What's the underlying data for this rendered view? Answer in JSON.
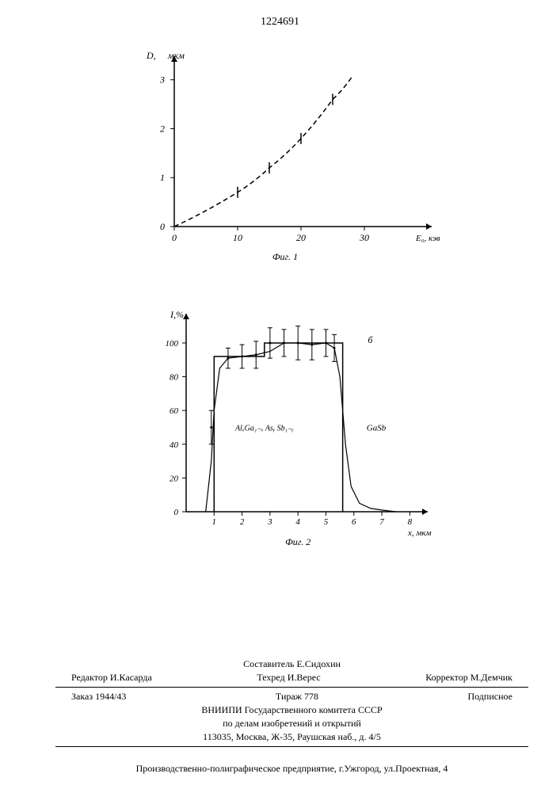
{
  "page_number": "1224691",
  "chart1": {
    "type": "line",
    "y_axis_label_left": "D,",
    "y_axis_label_right": "мкм",
    "x_axis_label": "E₀, кэв",
    "caption": "Фиг. 1",
    "x_ticks": [
      0,
      10,
      20,
      30
    ],
    "y_ticks": [
      0,
      1,
      2,
      3
    ],
    "xlim": [
      0,
      40
    ],
    "ylim": [
      0,
      3.4
    ],
    "line_color": "#000000",
    "line_dash": "6,4",
    "background": "#ffffff",
    "data_points": [
      {
        "x": 0,
        "y": 0
      },
      {
        "x": 10,
        "y": 0.7
      },
      {
        "x": 15,
        "y": 1.2
      },
      {
        "x": 20,
        "y": 1.8
      },
      {
        "x": 25,
        "y": 2.6
      },
      {
        "x": 28,
        "y": 3.05
      }
    ],
    "markers": [
      {
        "x": 10,
        "y": 0.7
      },
      {
        "x": 15,
        "y": 1.2
      },
      {
        "x": 20,
        "y": 1.8
      },
      {
        "x": 25,
        "y": 2.6
      }
    ]
  },
  "chart2": {
    "type": "line",
    "y_axis_label": "I,%",
    "x_axis_label": "x, мкм",
    "caption": "Фиг. 2",
    "region_label_left": "AlₓGa₁₋ₓ Asᵧ Sb₁₋ᵧ",
    "region_label_right": "GaSb",
    "curve_label": "б",
    "x_ticks": [
      1,
      2,
      3,
      4,
      5,
      6,
      7,
      8
    ],
    "y_ticks": [
      0,
      20,
      40,
      60,
      80,
      100
    ],
    "xlim": [
      0,
      8.5
    ],
    "ylim": [
      0,
      115
    ],
    "line_color": "#000000",
    "background": "#ffffff",
    "step_line": [
      {
        "x": 1,
        "y": 0
      },
      {
        "x": 1,
        "y": 92
      },
      {
        "x": 2.8,
        "y": 92
      },
      {
        "x": 2.8,
        "y": 100
      },
      {
        "x": 5.6,
        "y": 100
      },
      {
        "x": 5.6,
        "y": 0
      }
    ],
    "smooth_curve": [
      {
        "x": 0.7,
        "y": 0
      },
      {
        "x": 0.9,
        "y": 30
      },
      {
        "x": 1.0,
        "y": 60
      },
      {
        "x": 1.2,
        "y": 85
      },
      {
        "x": 1.5,
        "y": 91
      },
      {
        "x": 2.0,
        "y": 92
      },
      {
        "x": 2.5,
        "y": 93
      },
      {
        "x": 3.0,
        "y": 95
      },
      {
        "x": 3.5,
        "y": 100
      },
      {
        "x": 4.0,
        "y": 100
      },
      {
        "x": 4.5,
        "y": 99
      },
      {
        "x": 5.0,
        "y": 100
      },
      {
        "x": 5.3,
        "y": 97
      },
      {
        "x": 5.5,
        "y": 80
      },
      {
        "x": 5.7,
        "y": 40
      },
      {
        "x": 5.9,
        "y": 15
      },
      {
        "x": 6.2,
        "y": 5
      },
      {
        "x": 6.6,
        "y": 2
      },
      {
        "x": 7.0,
        "y": 1
      },
      {
        "x": 7.5,
        "y": 0
      }
    ],
    "error_bars": [
      {
        "x": 0.9,
        "y": 50,
        "err": 10
      },
      {
        "x": 1.5,
        "y": 91,
        "err": 6
      },
      {
        "x": 2.0,
        "y": 92,
        "err": 7
      },
      {
        "x": 2.5,
        "y": 93,
        "err": 8
      },
      {
        "x": 3.0,
        "y": 100,
        "err": 9
      },
      {
        "x": 3.5,
        "y": 100,
        "err": 8
      },
      {
        "x": 4.0,
        "y": 100,
        "err": 10
      },
      {
        "x": 4.5,
        "y": 99,
        "err": 9
      },
      {
        "x": 5.0,
        "y": 100,
        "err": 8
      },
      {
        "x": 5.3,
        "y": 97,
        "err": 8
      }
    ]
  },
  "credits": {
    "compiler_label": "Составитель",
    "compiler_name": "Е.Сидохин",
    "editor_label": "Редактор",
    "editor_name": "И.Касарда",
    "techred_label": "Техред",
    "techred_name": "И.Верес",
    "corrector_label": "Корректор",
    "corrector_name": "М.Демчик"
  },
  "order": {
    "order_label": "Заказ",
    "order_number": "1944/43",
    "circulation_label": "Тираж",
    "circulation_value": "778",
    "subscription": "Подписное"
  },
  "org": {
    "line1": "ВНИИПИ Государственного комитета СССР",
    "line2": "по делам изобретений и открытий",
    "line3": "113035, Москва, Ж-35, Раушская наб., д. 4/5"
  },
  "printer": "Производственно-полиграфическое предприятие, г.Ужгород, ул.Проектная, 4"
}
